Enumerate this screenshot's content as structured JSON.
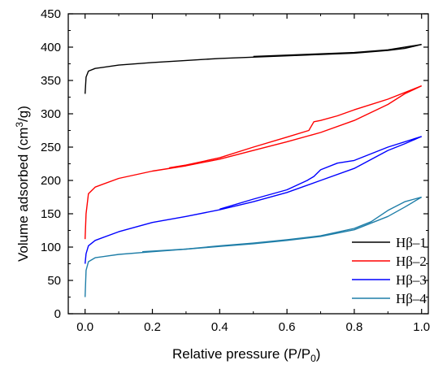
{
  "chart_data": {
    "type": "line",
    "xlabel": "Relative pressure  (P/P",
    "xlabel_sub": "0",
    "xlabel_end": ")",
    "ylabel_pre": "Volume adsorbed (cm",
    "ylabel_sup": "3",
    "ylabel_post": "/g)",
    "xlim": [
      -0.05,
      1.02
    ],
    "ylim": [
      0,
      450
    ],
    "xticks": [
      0.0,
      0.2,
      0.4,
      0.6,
      0.8,
      1.0
    ],
    "xtick_labels": [
      "0.0",
      "0.2",
      "0.4",
      "0.6",
      "0.8",
      "1.0"
    ],
    "yticks": [
      0,
      50,
      100,
      150,
      200,
      250,
      300,
      350,
      400,
      450
    ],
    "ytick_labels": [
      "0",
      "50",
      "100",
      "150",
      "200",
      "250",
      "300",
      "350",
      "400",
      "450"
    ],
    "grid": false,
    "legend_position": "bottom-right",
    "series": [
      {
        "name": "Hβ–1",
        "color": "#000000",
        "adsorption": [
          [
            0.0,
            330
          ],
          [
            0.003,
            355
          ],
          [
            0.01,
            364
          ],
          [
            0.03,
            368
          ],
          [
            0.1,
            373
          ],
          [
            0.2,
            377
          ],
          [
            0.3,
            380
          ],
          [
            0.4,
            383
          ],
          [
            0.5,
            385
          ],
          [
            0.6,
            387
          ],
          [
            0.7,
            389
          ],
          [
            0.8,
            391
          ],
          [
            0.9,
            395
          ],
          [
            0.95,
            398
          ],
          [
            1.0,
            404
          ]
        ],
        "desorption": [
          [
            1.0,
            404
          ],
          [
            0.9,
            396
          ],
          [
            0.8,
            392
          ],
          [
            0.7,
            390
          ],
          [
            0.6,
            388
          ],
          [
            0.5,
            386
          ]
        ]
      },
      {
        "name": "Hβ–2",
        "color": "#ff0000",
        "adsorption": [
          [
            0.0,
            112
          ],
          [
            0.003,
            150
          ],
          [
            0.01,
            180
          ],
          [
            0.03,
            190
          ],
          [
            0.1,
            203
          ],
          [
            0.2,
            214
          ],
          [
            0.3,
            222
          ],
          [
            0.4,
            232
          ],
          [
            0.5,
            245
          ],
          [
            0.6,
            258
          ],
          [
            0.7,
            272
          ],
          [
            0.8,
            290
          ],
          [
            0.9,
            314
          ],
          [
            0.95,
            330
          ],
          [
            1.0,
            342
          ]
        ],
        "desorption": [
          [
            1.0,
            342
          ],
          [
            0.9,
            322
          ],
          [
            0.8,
            306
          ],
          [
            0.75,
            297
          ],
          [
            0.7,
            290
          ],
          [
            0.68,
            288
          ],
          [
            0.665,
            275
          ],
          [
            0.6,
            265
          ],
          [
            0.5,
            250
          ],
          [
            0.4,
            234
          ],
          [
            0.3,
            223
          ],
          [
            0.25,
            219
          ]
        ]
      },
      {
        "name": "Hβ–3",
        "color": "#0000ff",
        "adsorption": [
          [
            0.0,
            75
          ],
          [
            0.003,
            90
          ],
          [
            0.01,
            102
          ],
          [
            0.03,
            110
          ],
          [
            0.1,
            123
          ],
          [
            0.2,
            137
          ],
          [
            0.3,
            146
          ],
          [
            0.4,
            156
          ],
          [
            0.5,
            168
          ],
          [
            0.6,
            182
          ],
          [
            0.7,
            200
          ],
          [
            0.8,
            218
          ],
          [
            0.9,
            245
          ],
          [
            0.95,
            255
          ],
          [
            1.0,
            266
          ]
        ],
        "desorption": [
          [
            1.0,
            266
          ],
          [
            0.9,
            250
          ],
          [
            0.8,
            230
          ],
          [
            0.75,
            226
          ],
          [
            0.7,
            216
          ],
          [
            0.68,
            206
          ],
          [
            0.66,
            200
          ],
          [
            0.6,
            186
          ],
          [
            0.5,
            172
          ],
          [
            0.4,
            157
          ]
        ]
      },
      {
        "name": "Hβ–4",
        "color": "#1f7ea8",
        "adsorption": [
          [
            0.0,
            25
          ],
          [
            0.003,
            65
          ],
          [
            0.01,
            78
          ],
          [
            0.03,
            84
          ],
          [
            0.1,
            89
          ],
          [
            0.2,
            93
          ],
          [
            0.3,
            97
          ],
          [
            0.4,
            101
          ],
          [
            0.5,
            105
          ],
          [
            0.6,
            110
          ],
          [
            0.7,
            116
          ],
          [
            0.8,
            126
          ],
          [
            0.9,
            146
          ],
          [
            0.95,
            160
          ],
          [
            1.0,
            175
          ]
        ],
        "desorption": [
          [
            1.0,
            175
          ],
          [
            0.95,
            168
          ],
          [
            0.9,
            155
          ],
          [
            0.85,
            138
          ],
          [
            0.8,
            128
          ],
          [
            0.7,
            117
          ],
          [
            0.6,
            111
          ],
          [
            0.5,
            106
          ],
          [
            0.4,
            102
          ],
          [
            0.3,
            97
          ],
          [
            0.2,
            94
          ],
          [
            0.17,
            93
          ]
        ]
      }
    ]
  }
}
